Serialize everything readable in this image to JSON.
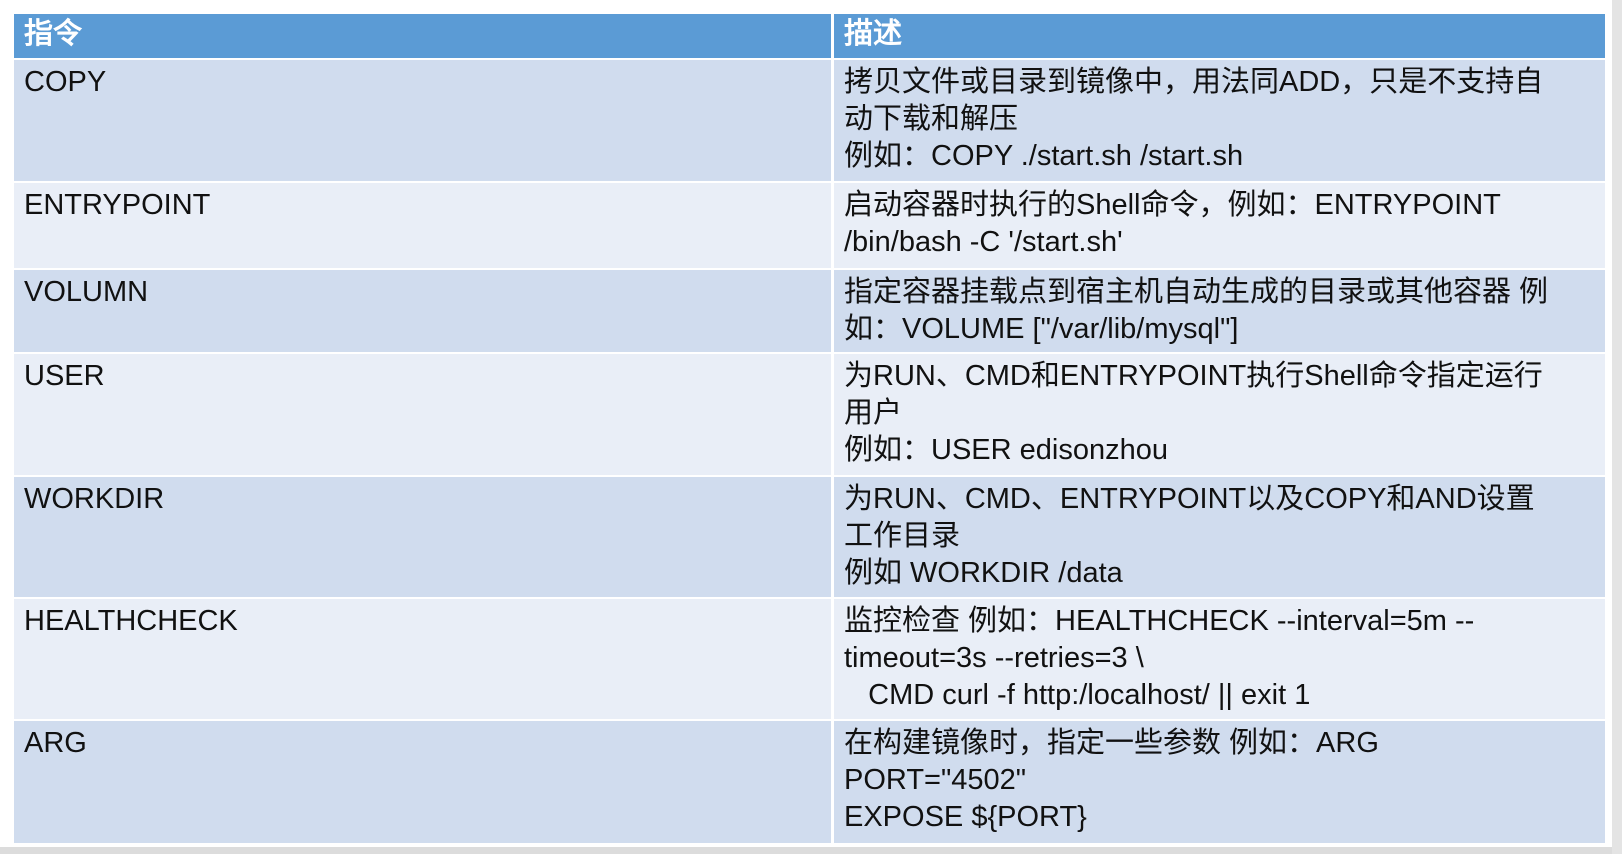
{
  "table": {
    "headers": [
      "指令",
      "描述"
    ],
    "colors": {
      "header": "#5b9bd5",
      "row_dark": "#d0dcee",
      "row_light": "#e9eef7"
    },
    "rows": [
      {
        "cmd": "COPY",
        "desc": [
          "拷贝文件或目录到镜像中，用法同ADD，只是不支持自",
          "动下载和解压",
          "例如：COPY ./start.sh /start.sh"
        ]
      },
      {
        "cmd": "ENTRYPOINT",
        "desc": [
          "启动容器时执行的Shell命令，例如：ENTRYPOINT",
          "/bin/bash -C '/start.sh'"
        ]
      },
      {
        "cmd": "VOLUMN",
        "desc": [
          "指定容器挂载点到宿主机自动生成的目录或其他容器 例",
          "如：VOLUME [\"/var/lib/mysql\"]"
        ]
      },
      {
        "cmd": "USER",
        "desc": [
          "为RUN、CMD和ENTRYPOINT执行Shell命令指定运行",
          "用户",
          "例如：USER edisonzhou"
        ]
      },
      {
        "cmd": "WORKDIR",
        "desc": [
          "为RUN、CMD、ENTRYPOINT以及COPY和AND设置",
          "工作目录",
          "例如 WORKDIR /data"
        ]
      },
      {
        "cmd": "HEALTHCHECK",
        "desc": [
          "监控检查 例如：HEALTHCHECK --interval=5m --",
          "timeout=3s --retries=3 \\",
          "   CMD curl -f http:/localhost/ || exit 1"
        ]
      },
      {
        "cmd": "ARG",
        "desc": [
          "在构建镜像时，指定一些参数 例如：ARG",
          "PORT=\"4502\"",
          "EXPOSE ${PORT}"
        ]
      }
    ]
  }
}
